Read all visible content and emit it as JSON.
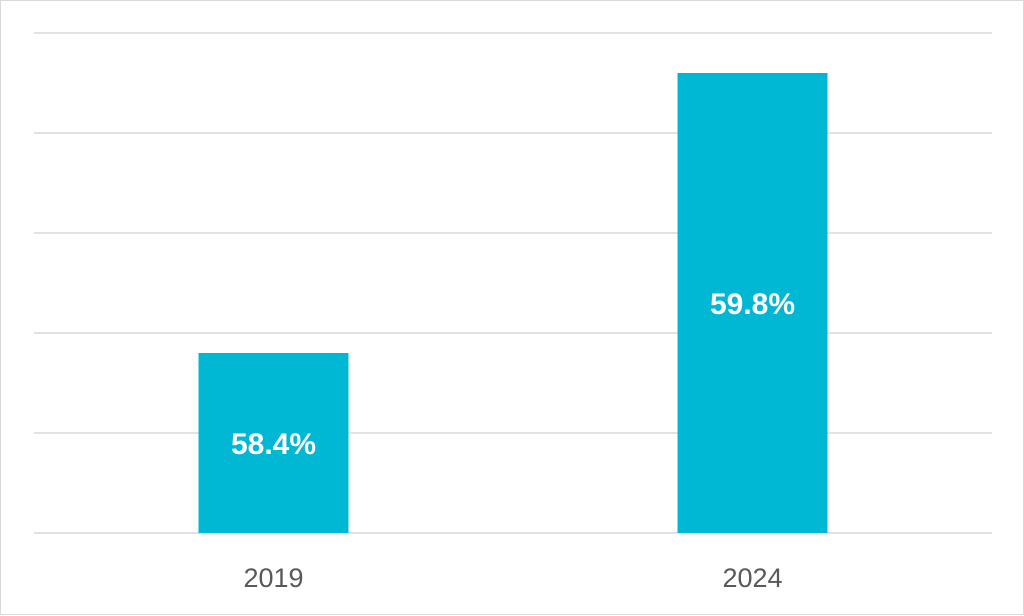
{
  "chart_data": {
    "type": "bar",
    "categories": [
      "2019",
      "2024"
    ],
    "values": [
      58.4,
      59.8
    ],
    "data_labels": [
      "58.4%",
      "59.8%"
    ],
    "ylim": [
      57.5,
      60.0
    ],
    "grid": true,
    "legend": "none",
    "colors": {
      "bar": "#00b7d4",
      "grid": "#d9d9d9",
      "tick_text": "#595959",
      "label_text": "#ffffff"
    }
  }
}
